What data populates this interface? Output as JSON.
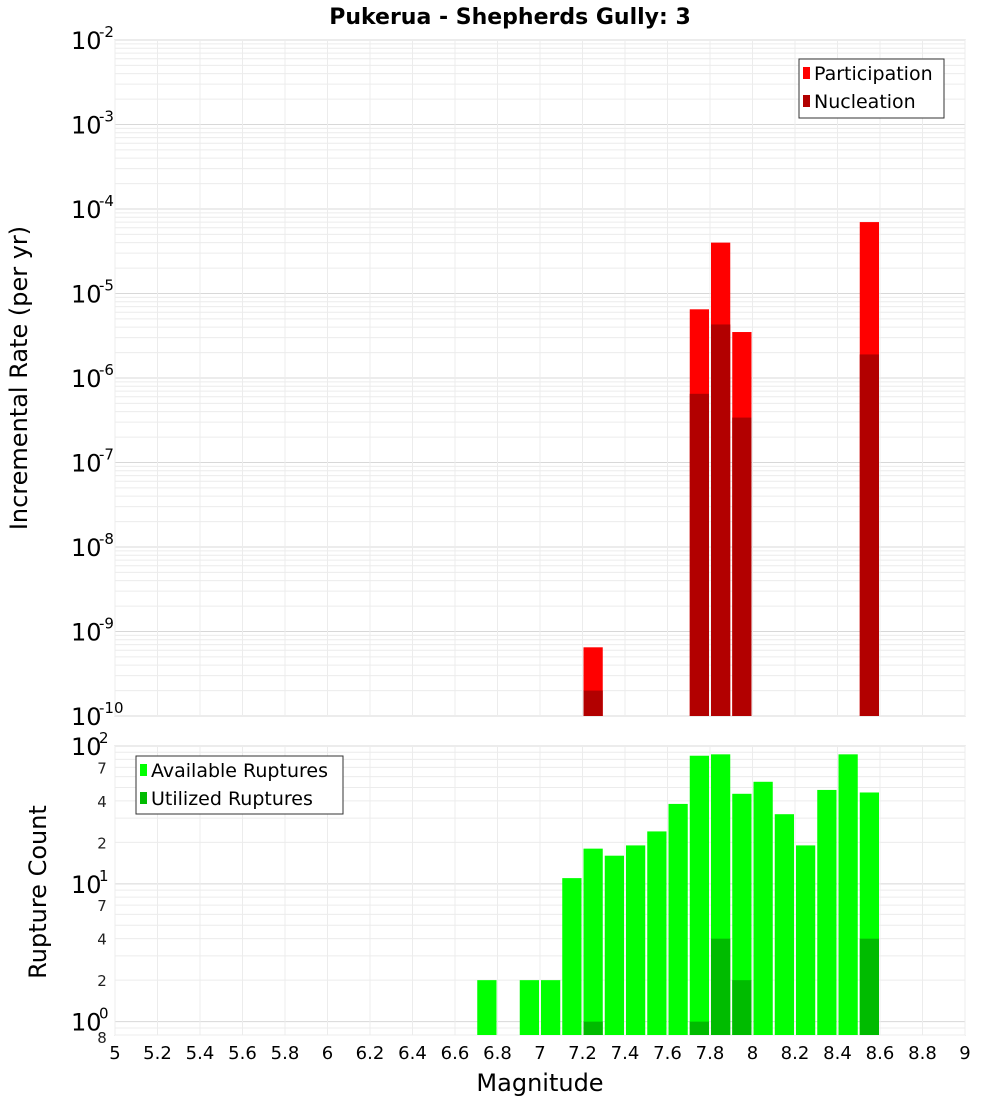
{
  "chart_data": [
    {
      "type": "bar",
      "title": "Pukerua - Shepherds Gully: 3",
      "xlabel": "Magnitude",
      "ylabel": "Incremental Rate (per yr)",
      "xlim": [
        5,
        9
      ],
      "ylim": [
        1e-10,
        0.01
      ],
      "yscale": "log",
      "bar_width": 0.1,
      "legend_position": "top-right",
      "y_tick_exponents": [
        "-2",
        "-3",
        "-4",
        "-5",
        "-6",
        "-7",
        "-8",
        "-9",
        "-10"
      ],
      "y_tick_base": "10",
      "series": [
        {
          "name": "Participation",
          "color": "#ff0000",
          "x": [
            7.25,
            7.75,
            7.85,
            7.95,
            8.55
          ],
          "values": [
            6.5e-10,
            6.5e-06,
            4e-05,
            3.5e-06,
            7e-05
          ]
        },
        {
          "name": "Nucleation",
          "color": "#b20000",
          "x": [
            7.25,
            7.75,
            7.85,
            7.95,
            8.55
          ],
          "values": [
            2e-10,
            6.5e-07,
            4.3e-06,
            3.4e-07,
            1.9e-06
          ]
        }
      ]
    },
    {
      "type": "bar",
      "xlabel": "Magnitude",
      "ylabel": "Rupture Count",
      "xlim": [
        5,
        9
      ],
      "ylim": [
        0.8,
        100
      ],
      "yscale": "log",
      "bar_width": 0.1,
      "legend_position": "top-left",
      "x_ticks": [
        "5",
        "5.2",
        "5.4",
        "5.6",
        "5.8",
        "6",
        "6.2",
        "6.4",
        "6.6",
        "6.8",
        "7",
        "7.2",
        "7.4",
        "7.6",
        "7.8",
        "8",
        "8.2",
        "8.4",
        "8.6",
        "8.8",
        "9"
      ],
      "y_major_ticks": [
        {
          "base": "10",
          "exp": "2",
          "value": 100
        },
        {
          "base": "10",
          "exp": "1",
          "value": 10
        },
        {
          "base": "10",
          "exp": "0",
          "value": 1
        }
      ],
      "y_minor_ticks": [
        {
          "label": "7",
          "value": 70
        },
        {
          "label": "4",
          "value": 40
        },
        {
          "label": "2",
          "value": 20
        },
        {
          "label": "7",
          "value": 7
        },
        {
          "label": "4",
          "value": 4
        },
        {
          "label": "2",
          "value": 2
        },
        {
          "label": "8",
          "value": 0.8
        }
      ],
      "series": [
        {
          "name": "Available Ruptures",
          "color": "#00ff00",
          "x": [
            6.75,
            6.95,
            7.05,
            7.15,
            7.25,
            7.35,
            7.45,
            7.55,
            7.65,
            7.75,
            7.85,
            7.95,
            8.05,
            8.15,
            8.25,
            8.35,
            8.45,
            8.55
          ],
          "values": [
            2,
            2,
            2,
            11,
            18,
            16,
            19,
            24,
            38,
            85,
            87,
            45,
            55,
            32,
            19,
            48,
            87,
            46
          ]
        },
        {
          "name": "Utilized Ruptures",
          "color": "#00bb00",
          "x": [
            7.25,
            7.75,
            7.85,
            7.95,
            8.55
          ],
          "values": [
            1,
            1,
            4,
            2,
            4
          ]
        }
      ]
    }
  ]
}
